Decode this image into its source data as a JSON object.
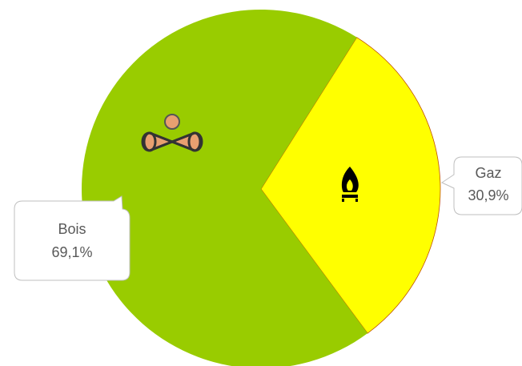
{
  "chart_data": {
    "type": "pie",
    "categories": [
      "Gaz",
      "Bois"
    ],
    "values": [
      30.9,
      69.1
    ],
    "value_labels": [
      "30,9%",
      "69,1%"
    ],
    "colors": [
      "#ffff00",
      "#99cc00"
    ]
  }
}
